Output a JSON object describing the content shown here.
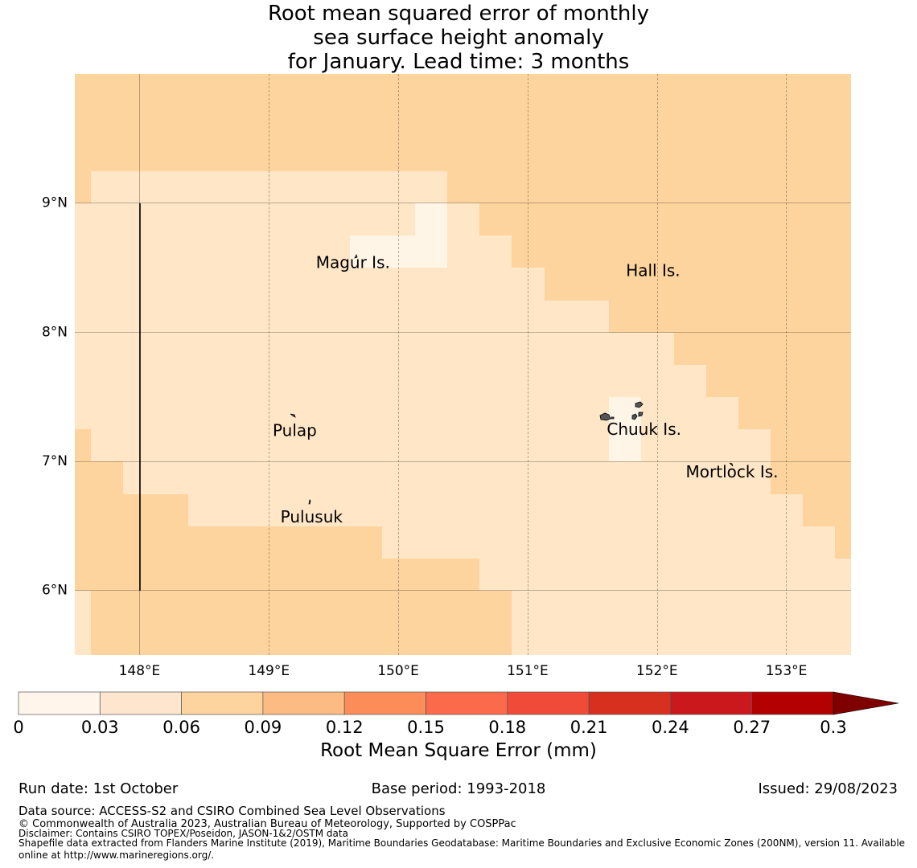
{
  "title": {
    "line1": "Root mean squared error of monthly",
    "line2": "sea surface height anomaly",
    "line3": "for January. Lead time: 3 months"
  },
  "map": {
    "lon_range": [
      147.5,
      153.5
    ],
    "lat_range": [
      5.5,
      10.0
    ],
    "lon_ticks": [
      {
        "value": 148,
        "label": "148°E"
      },
      {
        "value": 149,
        "label": "149°E"
      },
      {
        "value": 150,
        "label": "150°E"
      },
      {
        "value": 151,
        "label": "151°E"
      },
      {
        "value": 152,
        "label": "152°E"
      },
      {
        "value": 153,
        "label": "153°E"
      }
    ],
    "lat_ticks": [
      {
        "value": 9,
        "label": "9°N"
      },
      {
        "value": 8,
        "label": "8°N"
      },
      {
        "value": 7,
        "label": "7°N"
      },
      {
        "value": 6,
        "label": "6°N"
      }
    ],
    "places": [
      {
        "name": "Magur Is.",
        "lon": 149.65,
        "lat": 8.53
      },
      {
        "name": "Hall Is.",
        "lon": 151.97,
        "lat": 8.47
      },
      {
        "name": "Pulap",
        "lon": 149.2,
        "lat": 7.23
      },
      {
        "name": "Chuuk Is.",
        "lon": 151.9,
        "lat": 7.24
      },
      {
        "name": "Mortlock Is.",
        "lon": 152.58,
        "lat": 6.91
      },
      {
        "name": "Pulusuk",
        "lon": 149.33,
        "lat": 6.56
      }
    ],
    "boundary_line": {
      "lon": 148.0,
      "lat_from": 6.0,
      "lat_to": 9.0
    },
    "colors": {
      "bin_0_003": "#fff5e6",
      "bin_003_006": "#fee6c6",
      "bin_006_009": "#fdd49e"
    }
  },
  "colorbar": {
    "ticks": [
      "0",
      "0.03",
      "0.06",
      "0.09",
      "0.12",
      "0.15",
      "0.18",
      "0.21",
      "0.24",
      "0.27",
      "0.3"
    ],
    "colors": [
      "#fff5eb",
      "#fee6ce",
      "#fdd49e",
      "#fdbb84",
      "#fc8d59",
      "#fb6a4a",
      "#ef4b38",
      "#d7301f",
      "#cb181d",
      "#b30000"
    ],
    "extend_color": "#7f0000",
    "label": "Root Mean Square Error (mm)"
  },
  "footer": {
    "run_date": "Run date: 1st October",
    "base_period": "Base period: 1993-2018",
    "issued": "Issued: 29/08/2023",
    "data_source": "Data source: ACCESS-S2 and CSIRO Combined Sea Level Observations",
    "copyright": "© Commonwealth of Australia 2023, Australian Bureau of Meteorology, Supported by COSPPac",
    "disclaimer": "Disclaimer: Contains CSIRO TOPEX/Poseidon, JASON-1&2/OSTM data",
    "shapefile": "Shapefile data extracted from Flanders Marine Institute (2019), Maritime Boundaries Geodatabase: Maritime Boundaries and Exclusive Economic Zones (200NM), version 11. Available online at http://www.marineregions.org/."
  }
}
